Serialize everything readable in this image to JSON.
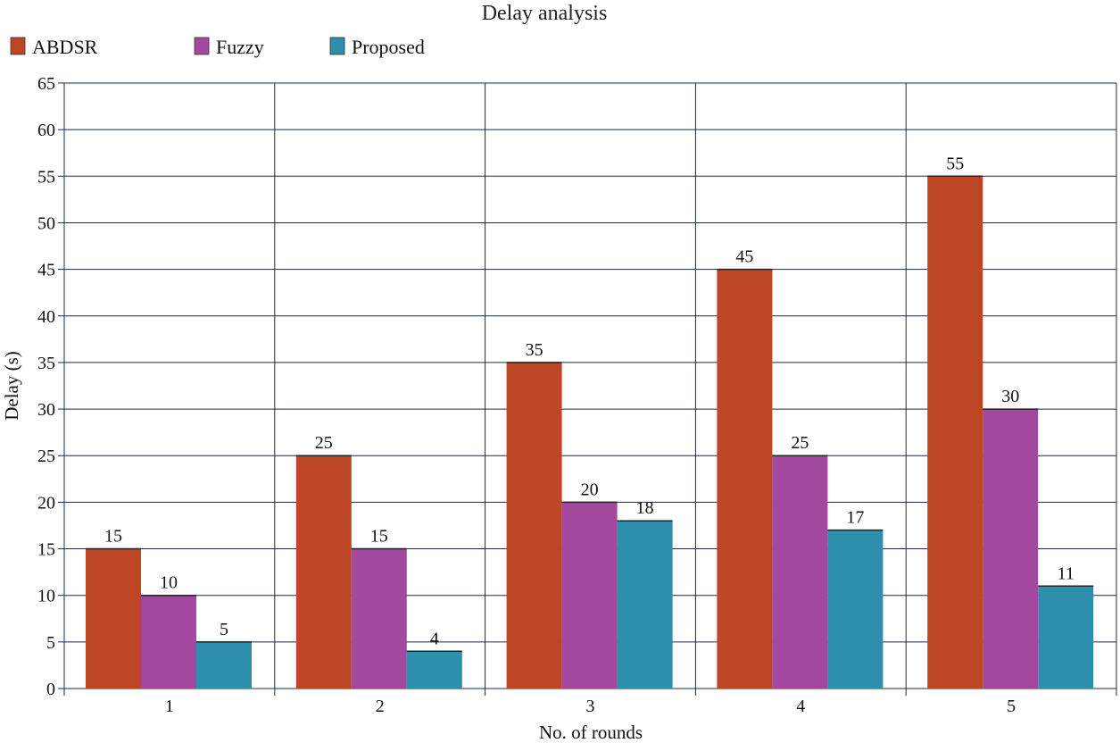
{
  "chart_data": {
    "type": "bar",
    "title": "Delay analysis",
    "xlabel": "No. of rounds",
    "ylabel": "Delay (s)",
    "categories": [
      "1",
      "2",
      "3",
      "4",
      "5"
    ],
    "series": [
      {
        "name": "ABDSR",
        "color": "#bd4627",
        "values": [
          15,
          25,
          35,
          45,
          55
        ]
      },
      {
        "name": "Fuzzy",
        "color": "#a2489e",
        "values": [
          10,
          15,
          20,
          25,
          30
        ]
      },
      {
        "name": "Proposed",
        "color": "#2d8fac",
        "values": [
          5,
          4,
          18,
          17,
          11
        ]
      }
    ],
    "ylim": [
      0,
      65
    ],
    "yticks": [
      0,
      5,
      10,
      15,
      20,
      25,
      30,
      35,
      40,
      45,
      50,
      55,
      60,
      65
    ],
    "grid": true,
    "legend": "top-left"
  }
}
